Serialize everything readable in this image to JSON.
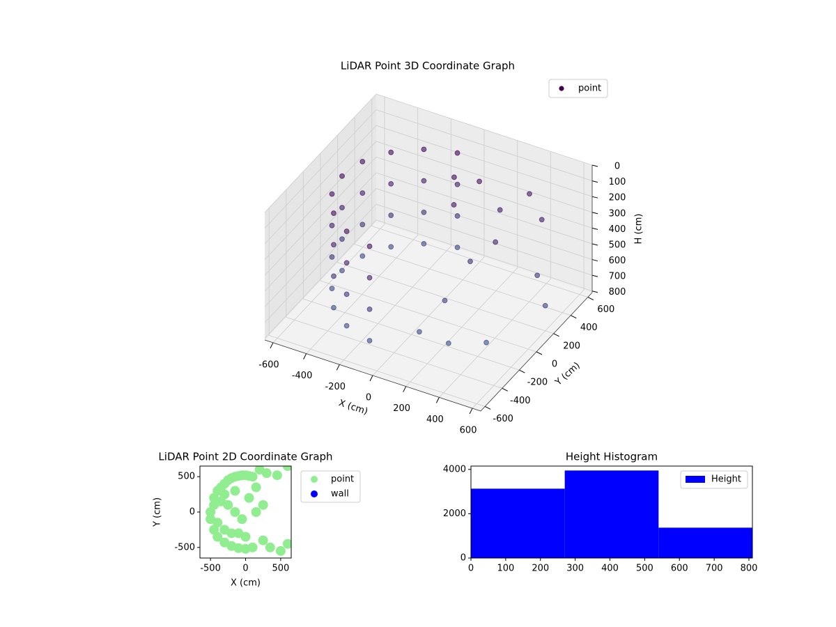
{
  "chart_data": [
    {
      "type": "scatter3d",
      "title": "LiDAR Point 3D Coordinate Graph",
      "xlabel": "X (cm)",
      "ylabel": "Y (cm)",
      "zlabel": "H (cm)",
      "xlim": [
        -650,
        650
      ],
      "ylim": [
        -650,
        650
      ],
      "zlim": [
        810,
        0
      ],
      "xticks": [
        -600,
        -400,
        -200,
        0,
        200,
        400,
        600
      ],
      "yticks": [
        -600,
        -400,
        -200,
        0,
        200,
        400,
        600
      ],
      "zticks": [
        0,
        100,
        200,
        300,
        400,
        500,
        600,
        700,
        800
      ],
      "grid": true,
      "legend": "upper right",
      "series": [
        {
          "name": "point",
          "color": "#440154",
          "x": [
            -90,
            -260,
            -398,
            -489,
            -520,
            -489,
            -398,
            -260,
            -90,
            -90,
            -260,
            -398,
            -489,
            -520,
            -489,
            -398,
            -260,
            -90,
            -90,
            -260,
            -398,
            -489,
            -520,
            -489,
            -398,
            -260,
            -90,
            -90,
            -260,
            -398,
            -489,
            -520,
            -489,
            -398,
            -260,
            -90,
            100,
            250,
            350,
            450,
            300,
            200,
            500,
            600,
            150,
            100,
            250,
            50,
            0,
            400
          ],
          "y": [
            512,
            450,
            334,
            178,
            0,
            -178,
            -334,
            -450,
            -512,
            512,
            450,
            334,
            178,
            0,
            -178,
            -334,
            -450,
            -512,
            512,
            450,
            334,
            178,
            0,
            -178,
            -334,
            -450,
            -512,
            512,
            450,
            334,
            178,
            0,
            -178,
            -334,
            -450,
            -512,
            400,
            350,
            500,
            450,
            200,
            100,
            300,
            200,
            -100,
            -300,
            -250,
            200,
            300,
            -100
          ],
          "z": [
            100,
            100,
            100,
            100,
            100,
            100,
            100,
            100,
            100,
            300,
            300,
            300,
            300,
            300,
            300,
            300,
            300,
            300,
            500,
            500,
            500,
            500,
            500,
            500,
            500,
            500,
            500,
            700,
            700,
            700,
            700,
            700,
            700,
            700,
            700,
            700,
            150,
            250,
            200,
            300,
            350,
            450,
            550,
            650,
            600,
            700,
            750,
            200,
            100,
            780
          ]
        }
      ]
    },
    {
      "type": "scatter",
      "title": "LiDAR Point 2D Coordinate Graph",
      "xlabel": "X (cm)",
      "ylabel": "Y (cm)",
      "xlim": [
        -650,
        650
      ],
      "ylim": [
        -650,
        650
      ],
      "xticks": [
        -500,
        0,
        500
      ],
      "yticks": [
        -500,
        0,
        500
      ],
      "legend": "outside right",
      "series": [
        {
          "name": "point",
          "color": "#90ee90",
          "x": [
            -500,
            -450,
            -400,
            -350,
            -300,
            -250,
            -200,
            -150,
            -100,
            -50,
            0,
            50,
            100,
            -500,
            -450,
            -400,
            -300,
            -200,
            -100,
            0,
            100,
            -450,
            -350,
            -250,
            -150,
            -50,
            50,
            150,
            -400,
            -300,
            -200,
            -100,
            0,
            -300,
            -150,
            200,
            300,
            250,
            350,
            450,
            600,
            500,
            600,
            150,
            250
          ],
          "y": [
            0,
            200,
            300,
            350,
            400,
            450,
            480,
            500,
            510,
            520,
            520,
            510,
            500,
            -100,
            -250,
            -350,
            -430,
            -480,
            -510,
            -520,
            -500,
            100,
            150,
            100,
            0,
            -100,
            200,
            0,
            -150,
            -250,
            -300,
            -300,
            -350,
            250,
            300,
            600,
            550,
            -400,
            -500,
            520,
            650,
            -550,
            -450,
            350,
            100
          ]
        },
        {
          "name": "wall",
          "color": "#0000ff",
          "x": [],
          "y": []
        }
      ]
    },
    {
      "type": "histogram",
      "title": "Height Histogram",
      "bins": [
        0,
        270,
        540,
        810
      ],
      "series": [
        {
          "name": "Height",
          "color": "#0000ff",
          "values": [
            3130,
            3950,
            1370
          ]
        }
      ],
      "xlim": [
        0,
        810
      ],
      "ylim": [
        0,
        4150
      ],
      "xticks": [
        0,
        100,
        200,
        300,
        400,
        500,
        600,
        700,
        800
      ],
      "yticks": [
        0,
        2000,
        4000
      ],
      "legend": "upper right"
    }
  ]
}
